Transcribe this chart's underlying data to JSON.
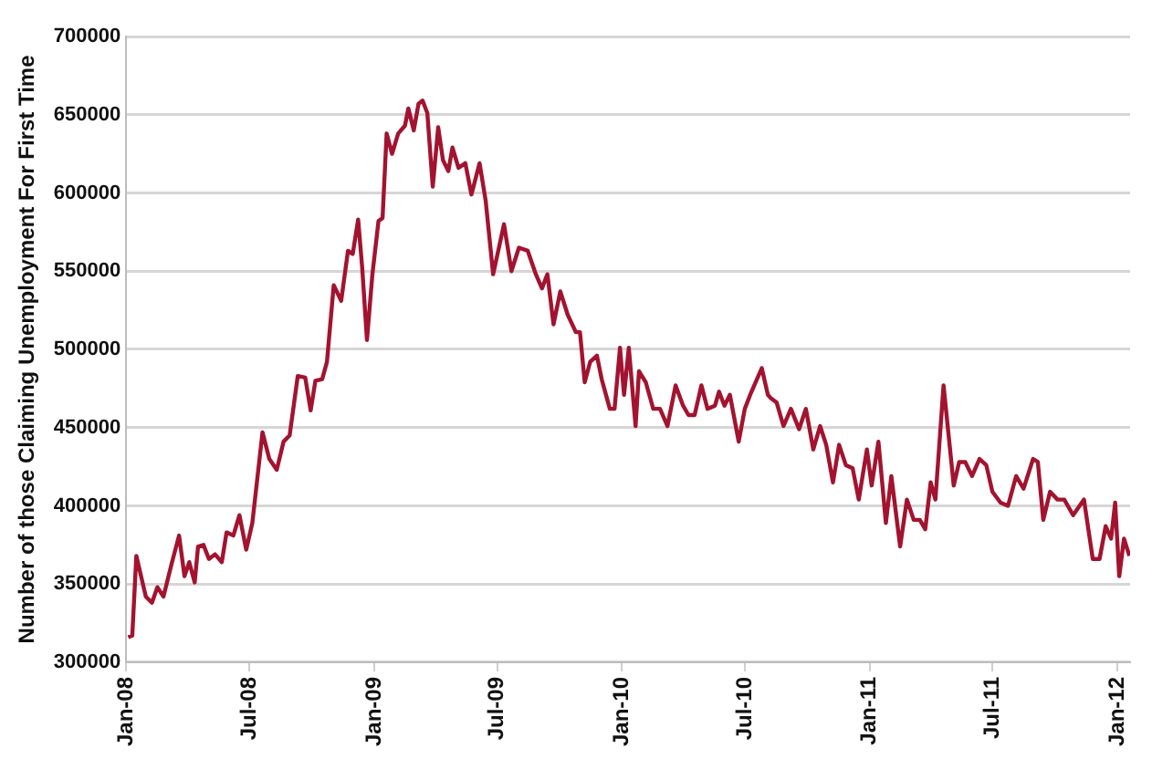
{
  "chart_data": {
    "type": "line",
    "ylabel": "Number of those Claiming Unemployment For First Time",
    "x": [
      "2008-01-04",
      "2008-01-10",
      "2008-01-16",
      "2008-01-30",
      "2008-02-08",
      "2008-02-16",
      "2008-02-25",
      "2008-03-08",
      "2008-03-19",
      "2008-03-27",
      "2008-04-03",
      "2008-04-11",
      "2008-04-16",
      "2008-04-24",
      "2008-05-02",
      "2008-05-11",
      "2008-05-21",
      "2008-05-28",
      "2008-06-07",
      "2008-06-16",
      "2008-06-26",
      "2008-07-05",
      "2008-07-20",
      "2008-07-30",
      "2008-08-10",
      "2008-08-20",
      "2008-08-29",
      "2008-09-10",
      "2008-09-21",
      "2008-09-29",
      "2008-10-06",
      "2008-10-16",
      "2008-10-23",
      "2008-11-02",
      "2008-11-13",
      "2008-11-23",
      "2008-11-30",
      "2008-12-08",
      "2008-12-14",
      "2008-12-21",
      "2008-12-29",
      "2009-01-07",
      "2009-01-13",
      "2009-01-19",
      "2009-01-27",
      "2009-02-05",
      "2009-02-15",
      "2009-02-20",
      "2009-02-28",
      "2009-03-07",
      "2009-03-13",
      "2009-03-20",
      "2009-03-28",
      "2009-04-05",
      "2009-04-12",
      "2009-04-20",
      "2009-04-26",
      "2009-05-05",
      "2009-05-15",
      "2009-05-24",
      "2009-06-05",
      "2009-06-14",
      "2009-06-25",
      "2009-07-11",
      "2009-07-22",
      "2009-08-02",
      "2009-08-15",
      "2009-08-27",
      "2009-09-05",
      "2009-09-13",
      "2009-09-22",
      "2009-10-02",
      "2009-10-13",
      "2009-10-25",
      "2009-10-31",
      "2009-11-07",
      "2009-11-15",
      "2009-11-25",
      "2009-12-02",
      "2009-12-14",
      "2009-12-21",
      "2009-12-29",
      "2010-01-04",
      "2010-01-11",
      "2010-01-21",
      "2010-01-26",
      "2010-02-05",
      "2010-02-16",
      "2010-02-26",
      "2010-03-09",
      "2010-03-21",
      "2010-04-01",
      "2010-04-09",
      "2010-04-18",
      "2010-04-28",
      "2010-05-07",
      "2010-05-18",
      "2010-05-24",
      "2010-06-01",
      "2010-06-09",
      "2010-06-22",
      "2010-07-01",
      "2010-07-09",
      "2010-07-26",
      "2010-08-04",
      "2010-08-08",
      "2010-08-17",
      "2010-08-27",
      "2010-09-07",
      "2010-09-19",
      "2010-09-29",
      "2010-10-10",
      "2010-10-20",
      "2010-10-29",
      "2010-11-08",
      "2010-11-17",
      "2010-11-27",
      "2010-12-07",
      "2010-12-16",
      "2010-12-28",
      "2011-01-04",
      "2011-01-14",
      "2011-01-25",
      "2011-02-02",
      "2011-02-15",
      "2011-02-25",
      "2011-03-07",
      "2011-03-16",
      "2011-03-24",
      "2011-04-01",
      "2011-04-08",
      "2011-04-20",
      "2011-05-05",
      "2011-05-13",
      "2011-05-22",
      "2011-06-01",
      "2011-06-12",
      "2011-06-22",
      "2011-07-01",
      "2011-07-13",
      "2011-07-24",
      "2011-08-05",
      "2011-08-16",
      "2011-08-30",
      "2011-09-06",
      "2011-09-14",
      "2011-09-24",
      "2011-10-05",
      "2011-10-15",
      "2011-10-28",
      "2011-11-13",
      "2011-11-26",
      "2011-12-06",
      "2011-12-15",
      "2011-12-23",
      "2011-12-29",
      "2012-01-04",
      "2012-01-11",
      "2012-01-19"
    ],
    "series": [
      {
        "color": "#a3132f",
        "values": [
          316000,
          317000,
          368000,
          342000,
          338000,
          348000,
          342000,
          363000,
          381000,
          355000,
          364000,
          351000,
          374000,
          375000,
          366000,
          369000,
          364000,
          383000,
          381000,
          394000,
          372000,
          389000,
          447000,
          430000,
          423000,
          441000,
          445000,
          483000,
          482000,
          461000,
          480000,
          481000,
          492000,
          541000,
          531000,
          563000,
          561000,
          583000,
          552000,
          506000,
          548000,
          582000,
          584000,
          638000,
          625000,
          638000,
          643000,
          654000,
          640000,
          657000,
          659000,
          651000,
          604000,
          642000,
          621000,
          614000,
          629000,
          616000,
          619000,
          599000,
          619000,
          595000,
          548000,
          580000,
          550000,
          565000,
          563000,
          548000,
          539000,
          548000,
          516000,
          537000,
          522000,
          511000,
          511000,
          479000,
          492000,
          496000,
          481000,
          462000,
          462000,
          501000,
          471000,
          501000,
          451000,
          486000,
          479000,
          462000,
          462000,
          451000,
          477000,
          464000,
          458000,
          458000,
          477000,
          462000,
          464000,
          473000,
          464000,
          471000,
          441000,
          462000,
          471000,
          488000,
          471000,
          469000,
          466000,
          451000,
          462000,
          449000,
          462000,
          436000,
          451000,
          439000,
          415000,
          439000,
          426000,
          424000,
          404000,
          436000,
          413000,
          441000,
          389000,
          419000,
          374000,
          404000,
          391000,
          391000,
          385000,
          415000,
          404000,
          477000,
          413000,
          428000,
          428000,
          419000,
          430000,
          426000,
          409000,
          402000,
          400000,
          419000,
          411000,
          430000,
          428000,
          391000,
          409000,
          404000,
          404000,
          394000,
          404000,
          366000,
          366000,
          387000,
          379000,
          402000,
          355000,
          379000,
          368000
        ]
      }
    ],
    "xlim": [
      "2008-01-01",
      "2012-01-20"
    ],
    "xticks": [
      {
        "value": "2008-01-01",
        "label": "Jan-08"
      },
      {
        "value": "2008-07-01",
        "label": "Jul-08"
      },
      {
        "value": "2009-01-01",
        "label": "Jan-09"
      },
      {
        "value": "2009-07-01",
        "label": "Jul-09"
      },
      {
        "value": "2010-01-01",
        "label": "Jan-10"
      },
      {
        "value": "2010-07-01",
        "label": "Jul-10"
      },
      {
        "value": "2011-01-01",
        "label": "Jan-11"
      },
      {
        "value": "2011-07-01",
        "label": "Jul-11"
      },
      {
        "value": "2012-01-01",
        "label": "Jan-12"
      }
    ],
    "ylim": [
      300000,
      700000
    ],
    "yticks": [
      300000,
      350000,
      400000,
      450000,
      500000,
      550000,
      600000,
      650000,
      700000
    ],
    "grid": "y",
    "legend": false,
    "marker": "none",
    "line_style": "solid"
  }
}
